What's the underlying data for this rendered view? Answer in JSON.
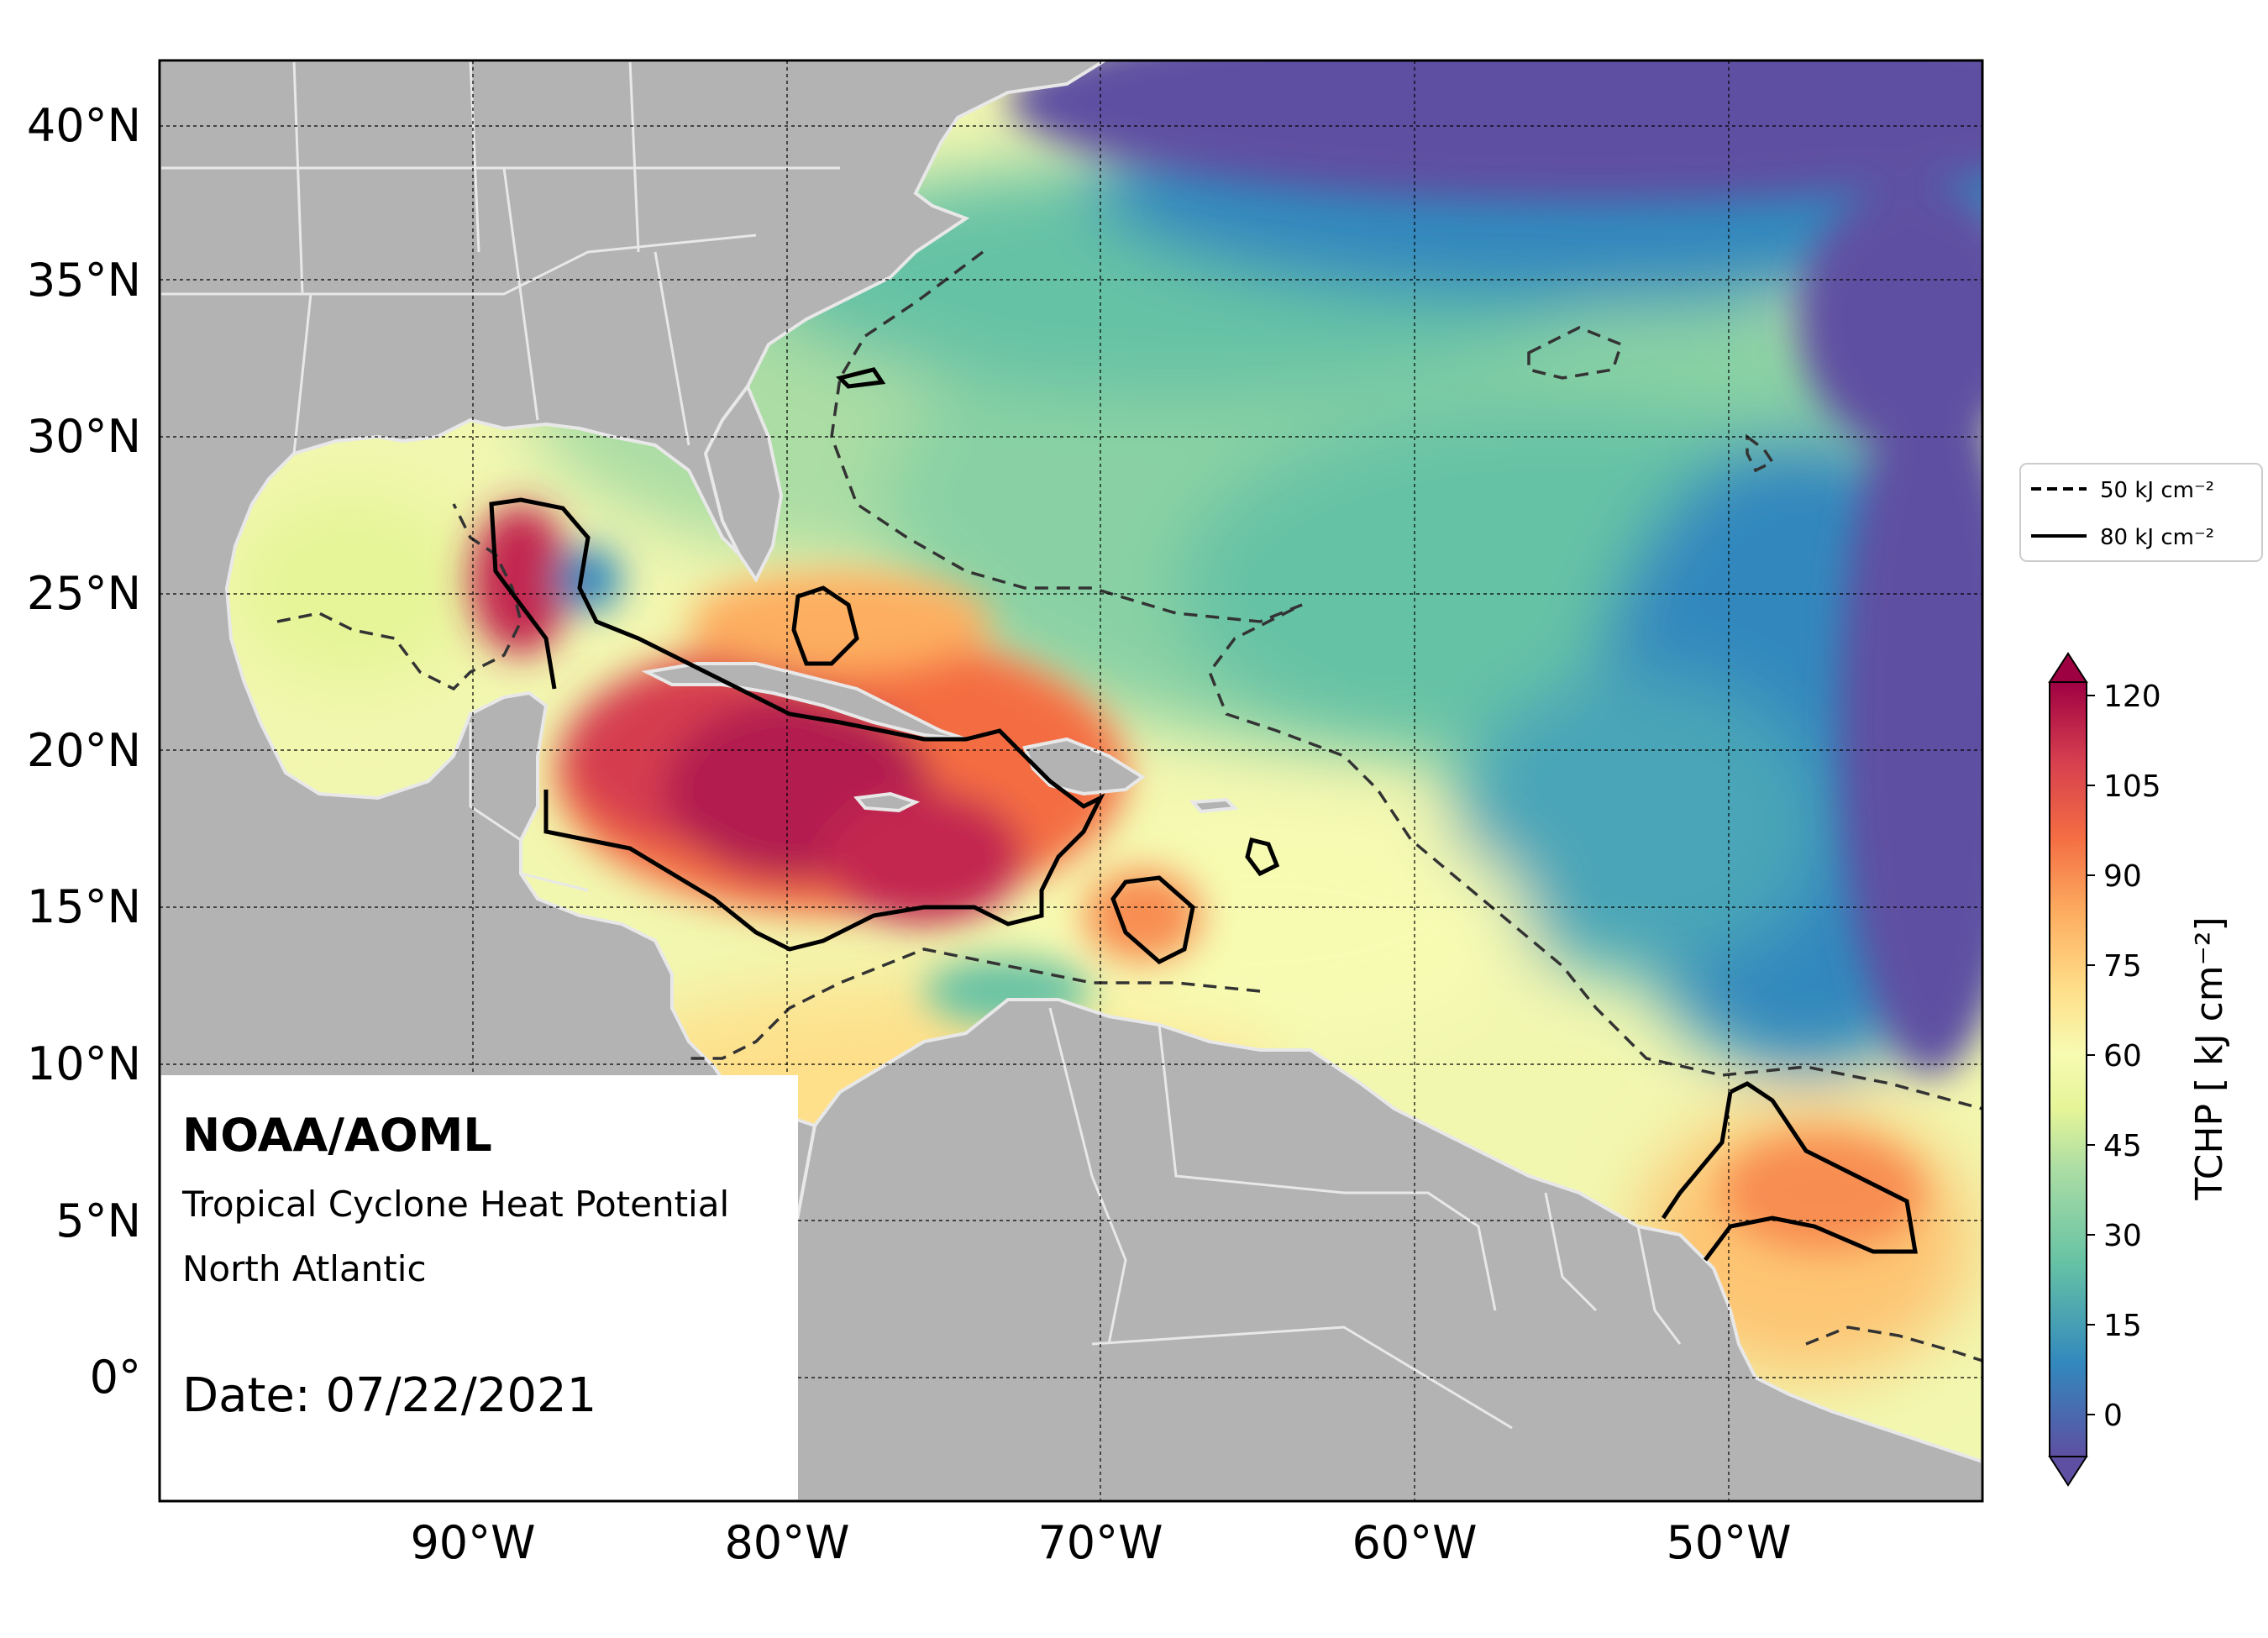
{
  "annotation": {
    "org": "NOAA/AOML",
    "product": "Tropical Cyclone Heat Potential",
    "region": "North Atlantic",
    "date_text": "Date: 07/22/2021"
  },
  "map": {
    "lon_range": [
      -100,
      -42
    ],
    "lat_range": [
      -4,
      42
    ],
    "lat_ticks": [
      "40°N",
      "35°N",
      "30°N",
      "25°N",
      "20°N",
      "15°N",
      "10°N",
      "5°N",
      "0°"
    ],
    "lon_ticks": [
      "90°W",
      "80°W",
      "70°W",
      "60°W",
      "50°W"
    ],
    "land_color": "#b3b3b3",
    "ocean_shades": {
      "cool": "#5e4fa2",
      "mid": "#3288bd",
      "teal": "#66c2a5",
      "green": "#abdda4",
      "yellow": "#f2f7b0",
      "pale": "#fee08b",
      "orange": "#fdae61",
      "red": "#f46d43",
      "hot": "#d53e4f",
      "max": "#b21c4f"
    }
  },
  "legend": {
    "dashed_label": "50 kJ cm⁻²",
    "solid_label": "80 kJ cm⁻²"
  },
  "colorbar": {
    "title": "TCHP [ kJ cm⁻²]",
    "ticks": [
      "120",
      "105",
      "90",
      "75",
      "60",
      "45",
      "30",
      "15",
      "0"
    ],
    "colors": [
      "#5e4fa2",
      "#3f62aa",
      "#3288bd",
      "#4aa5b7",
      "#66c2a5",
      "#89d1a4",
      "#abdda4",
      "#cdea9f",
      "#e6f598",
      "#f7fbb2",
      "#fee08b",
      "#fdc573",
      "#fdae61",
      "#f88d51",
      "#f46d43",
      "#e4554a",
      "#d53e4f",
      "#c3284f",
      "#b21c4f",
      "#9e0142"
    ]
  }
}
